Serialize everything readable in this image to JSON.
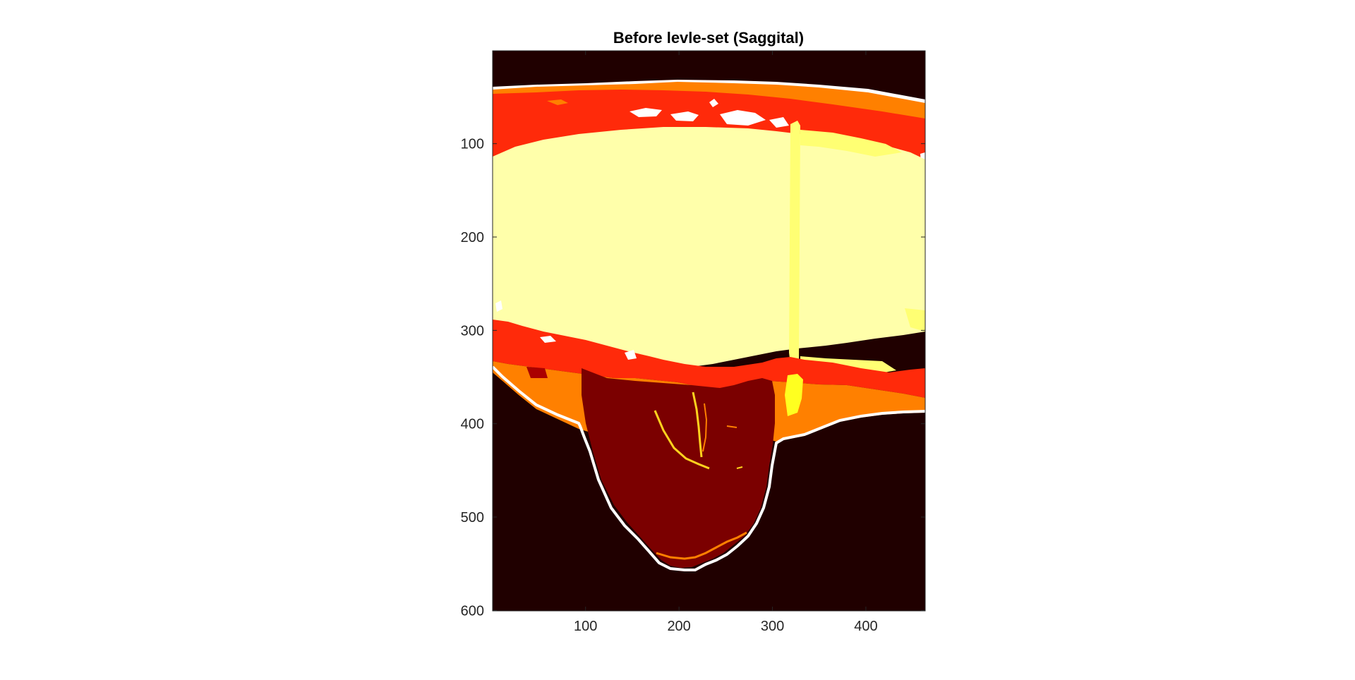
{
  "chart_data": {
    "type": "heatmap",
    "title": "Before levle-set (Saggital)",
    "xlabel": "",
    "ylabel": "",
    "xlim": [
      0.5,
      463.5
    ],
    "ylim": [
      0.5,
      600.5
    ],
    "y_reversed": true,
    "grid": false,
    "colormap": "hot",
    "x_ticks": [
      100,
      200,
      300,
      400
    ],
    "x_tick_labels": [
      "100",
      "200",
      "300",
      "400"
    ],
    "y_ticks": [
      100,
      200,
      300,
      400,
      500,
      600
    ],
    "y_tick_labels": [
      "100",
      "200",
      "300",
      "400",
      "500",
      "600"
    ],
    "colors": {
      "background": "#200000",
      "dark_red": "#7b0000",
      "red": "#ff2a0a",
      "orange": "#ff8000",
      "light_yellow": "#ffffaa",
      "yellow_stripe": "#ffff73",
      "bright_yellow": "#ffff20",
      "white": "#ffffff"
    }
  }
}
